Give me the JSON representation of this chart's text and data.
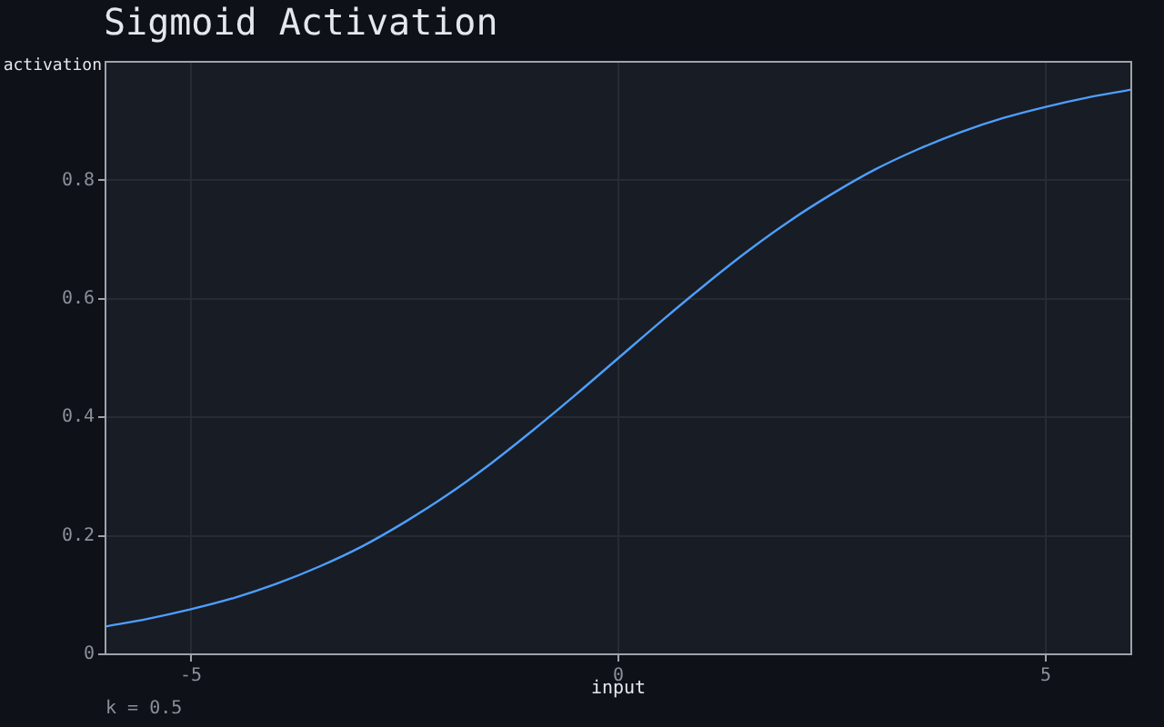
{
  "chart_data": {
    "type": "line",
    "title": "Sigmoid Activation",
    "xlabel": "input",
    "ylabel": "activation",
    "annotations": [
      "k = 0.5"
    ],
    "x": [
      -6,
      -5.5,
      -5,
      -4.5,
      -4,
      -3.5,
      -3,
      -2.5,
      -2,
      -1.5,
      -1,
      -0.5,
      0,
      0.5,
      1,
      1.5,
      2,
      2.5,
      3,
      3.5,
      4,
      4.5,
      5,
      5.5,
      6
    ],
    "series": [
      {
        "color": "#4d9fff",
        "values": [
          0.047,
          0.06,
          0.076,
          0.095,
          0.119,
          0.148,
          0.182,
          0.223,
          0.269,
          0.321,
          0.378,
          0.438,
          0.5,
          0.562,
          0.622,
          0.679,
          0.731,
          0.777,
          0.818,
          0.852,
          0.881,
          0.905,
          0.924,
          0.94,
          0.953
        ]
      }
    ],
    "xlim": [
      -6,
      6
    ],
    "ylim": [
      0,
      1
    ],
    "xticks": [
      -5,
      0,
      5
    ],
    "yticks": [
      0,
      0.2,
      0.4,
      0.6,
      0.8
    ],
    "grid": true,
    "marker": "none",
    "line_style": "solid"
  }
}
